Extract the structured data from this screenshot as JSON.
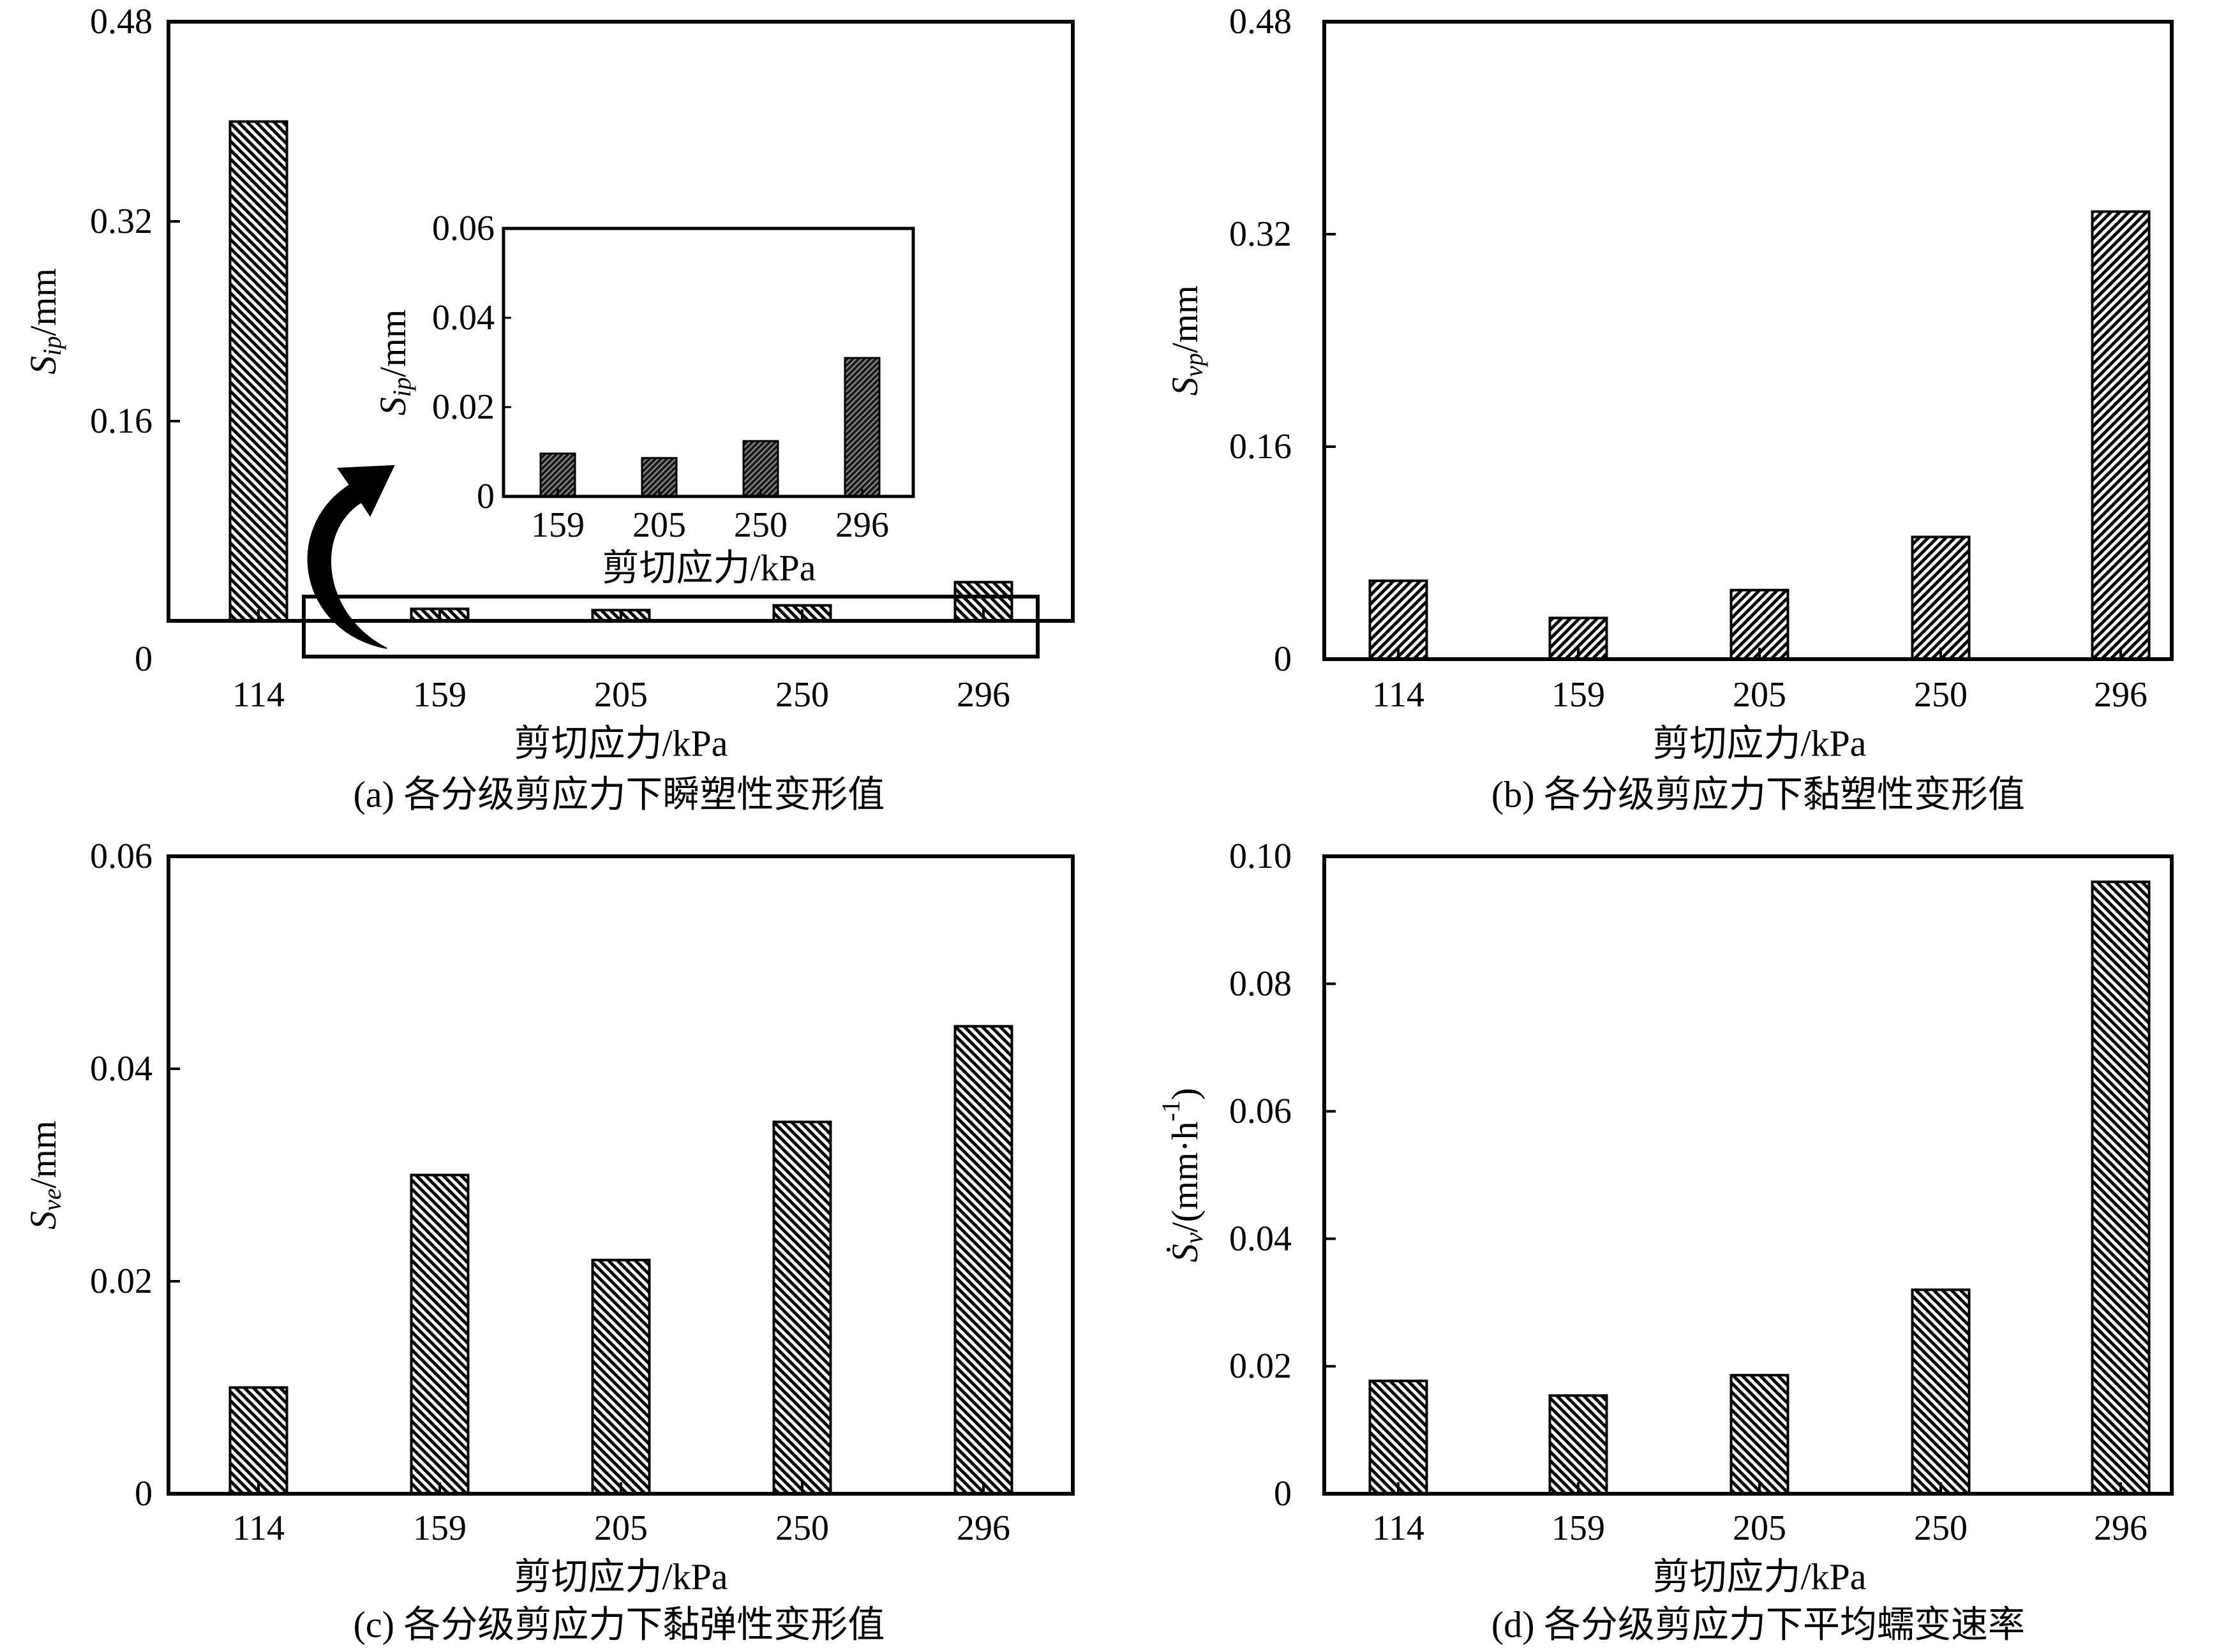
{
  "chart_data": [
    {
      "type": "bar",
      "caption": "(a) 各分级剪应力下瞬塑性变形值",
      "xlabel": "剪切应力/kPa",
      "ylabel": {
        "var": "S",
        "sub": "ip",
        "unit": "/mm"
      },
      "categories": [
        "114",
        "159",
        "205",
        "250",
        "296"
      ],
      "values": [
        0.4,
        0.0096,
        0.0086,
        0.0124,
        0.031
      ],
      "ylim": [
        0,
        0.48
      ],
      "yticks": [
        "0",
        "0.16",
        "0.32",
        "0.48"
      ],
      "inset": {
        "type": "bar",
        "xlabel": "剪切应力/kPa",
        "ylabel": {
          "var": "S",
          "sub": "ip",
          "unit": "/mm"
        },
        "categories": [
          "159",
          "205",
          "250",
          "296"
        ],
        "values": [
          0.0096,
          0.0086,
          0.0124,
          0.031
        ],
        "ylim": [
          0,
          0.06
        ],
        "yticks": [
          "0",
          "0.02",
          "0.04",
          "0.06"
        ]
      }
    },
    {
      "type": "bar",
      "caption": "(b) 各分级剪应力下黏塑性变形值",
      "xlabel": "剪切应力/kPa",
      "ylabel": {
        "var": "S",
        "sub": "vp",
        "unit": "/mm"
      },
      "categories": [
        "114",
        "159",
        "205",
        "250",
        "296"
      ],
      "values": [
        0.059,
        0.031,
        0.052,
        0.092,
        0.337
      ],
      "ylim": [
        0,
        0.48
      ],
      "yticks": [
        "0",
        "0.16",
        "0.32",
        "0.48"
      ]
    },
    {
      "type": "bar",
      "caption": "(c) 各分级剪应力下黏弹性变形值",
      "xlabel": "剪切应力/kPa",
      "ylabel": {
        "var": "S",
        "sub": "ve",
        "unit": "/mm"
      },
      "categories": [
        "114",
        "159",
        "205",
        "250",
        "296"
      ],
      "values": [
        0.01,
        0.03,
        0.022,
        0.035,
        0.044
      ],
      "ylim": [
        0,
        0.06
      ],
      "yticks": [
        "0",
        "0.02",
        "0.04",
        "0.06"
      ]
    },
    {
      "type": "bar",
      "caption": "(d) 各分级剪应力下平均蠕变速率",
      "xlabel": "剪切应力/kPa",
      "ylabel": {
        "var": "Ṡ",
        "sub": "v",
        "unit": "/(mm·h",
        "sup": "-1",
        "unit_end": ")"
      },
      "categories": [
        "114",
        "159",
        "205",
        "250",
        "296"
      ],
      "values": [
        0.0177,
        0.0154,
        0.0186,
        0.032,
        0.096
      ],
      "ylim": [
        0,
        0.1
      ],
      "yticks": [
        "0",
        "0.02",
        "0.04",
        "0.06",
        "0.08",
        "0.10"
      ]
    }
  ]
}
